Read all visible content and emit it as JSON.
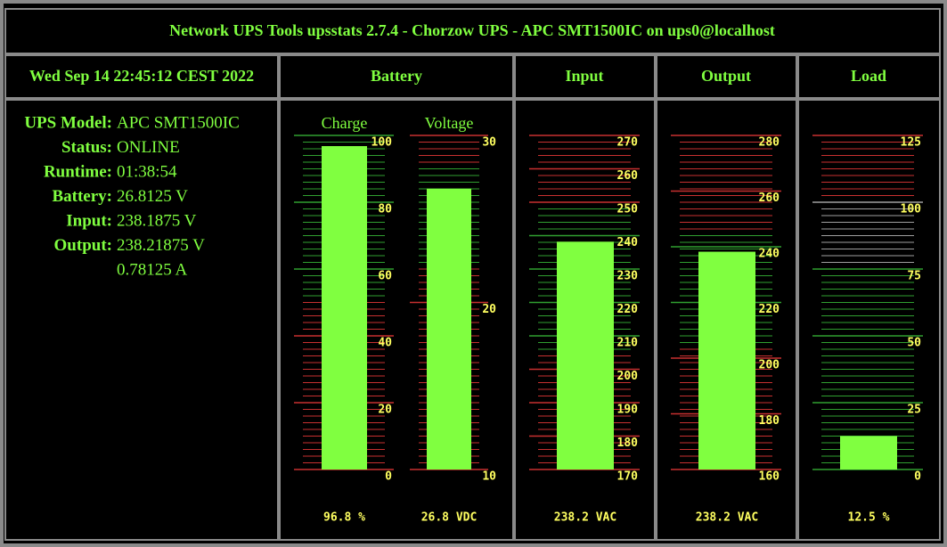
{
  "header": {
    "title": "Network UPS Tools upsstats 2.7.4 - Chorzow UPS - APC SMT1500IC on ups0@localhost"
  },
  "date": "Wed Sep 14 22:45:12 CEST 2022",
  "columns": [
    "Battery",
    "Input",
    "Output",
    "Load"
  ],
  "info": [
    {
      "label": "UPS Model:",
      "values": [
        "APC SMT1500IC"
      ]
    },
    {
      "label": "Status:",
      "values": [
        "ONLINE"
      ]
    },
    {
      "label": "Runtime:",
      "values": [
        "01:38:54"
      ]
    },
    {
      "label": "Battery:",
      "values": [
        "26.8125 V"
      ]
    },
    {
      "label": "Input:",
      "values": [
        "238.1875 V"
      ]
    },
    {
      "label": "Output:",
      "values": [
        "238.21875 V",
        "0.78125 A"
      ]
    }
  ],
  "gauges": [
    {
      "caption": "Charge",
      "ylim": [
        0,
        100
      ],
      "yticks": [
        0,
        20,
        40,
        60,
        80,
        100
      ],
      "value": 96.8,
      "value_label": "96.8 %",
      "color": "#80ff40",
      "zones": [
        {
          "from": 0,
          "to": 50,
          "color": "#c83030"
        },
        {
          "from": 50,
          "to": 100,
          "color": "#30a030"
        }
      ]
    },
    {
      "caption": "Voltage",
      "ylim": [
        10,
        30
      ],
      "yticks": [
        10,
        20,
        30
      ],
      "value": 26.8125,
      "value_label": "26.8 VDC",
      "color": "#80ff40",
      "zones": [
        {
          "from": 10,
          "to": 22,
          "color": "#c83030"
        },
        {
          "from": 22,
          "to": 28,
          "color": "#30a030"
        },
        {
          "from": 28,
          "to": 30,
          "color": "#c83030"
        }
      ]
    },
    {
      "ylim": [
        170,
        270
      ],
      "yticks": [
        170,
        180,
        190,
        200,
        210,
        220,
        230,
        240,
        250,
        260,
        270
      ],
      "value": 238.1875,
      "value_label": "238.2 VAC",
      "color": "#80ff40",
      "zones": [
        {
          "from": 170,
          "to": 205,
          "color": "#c83030"
        },
        {
          "from": 205,
          "to": 248,
          "color": "#30a030"
        },
        {
          "from": 248,
          "to": 270,
          "color": "#c83030"
        }
      ]
    },
    {
      "ylim": [
        160,
        280
      ],
      "yticks": [
        160,
        180,
        200,
        220,
        240,
        260,
        280
      ],
      "value": 238.21875,
      "value_label": "238.2 VAC",
      "color": "#80ff40",
      "zones": [
        {
          "from": 160,
          "to": 205,
          "color": "#c83030"
        },
        {
          "from": 205,
          "to": 245,
          "color": "#30a030"
        },
        {
          "from": 245,
          "to": 280,
          "color": "#c83030"
        }
      ]
    },
    {
      "ylim": [
        0,
        125
      ],
      "yticks": [
        0,
        25,
        50,
        75,
        100,
        125
      ],
      "value": 12.5,
      "value_label": "12.5 %",
      "color": "#80ff40",
      "zones": [
        {
          "from": 0,
          "to": 75,
          "color": "#30a030"
        },
        {
          "from": 75,
          "to": 100,
          "color": "#a0a0a0"
        },
        {
          "from": 100,
          "to": 125,
          "color": "#c83030"
        }
      ]
    }
  ]
}
